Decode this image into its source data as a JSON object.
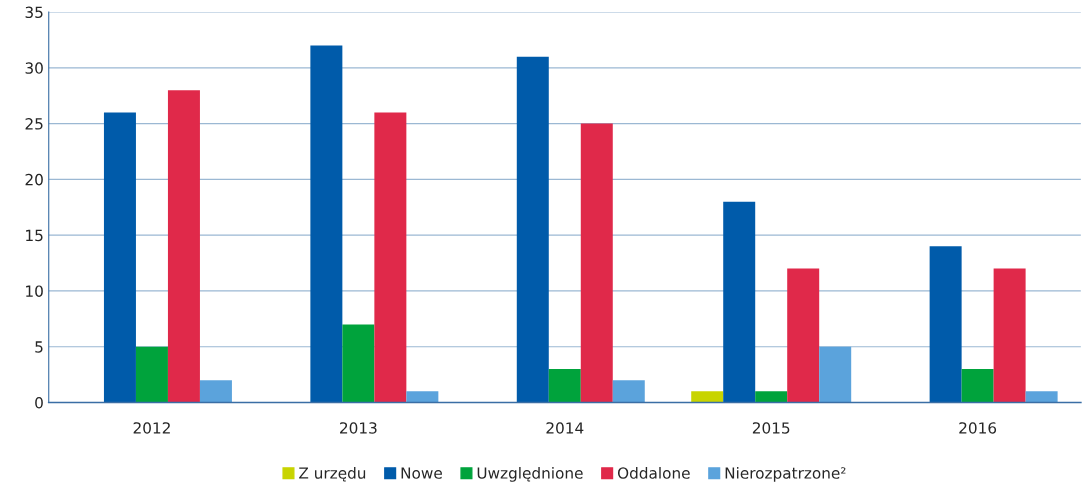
{
  "chart_data": {
    "type": "bar",
    "categories": [
      "2012",
      "2013",
      "2014",
      "2015",
      "2016"
    ],
    "series": [
      {
        "name": "Z urzędu",
        "color": "#c8d400",
        "values": [
          null,
          null,
          null,
          1,
          null
        ]
      },
      {
        "name": "Nowe",
        "color": "#005baa",
        "values": [
          26,
          32,
          31,
          18,
          14
        ]
      },
      {
        "name": "Uwzględnione",
        "color": "#00a33c",
        "values": [
          5,
          7,
          3,
          1,
          3
        ]
      },
      {
        "name": "Oddalone",
        "color": "#e0294a",
        "values": [
          28,
          26,
          25,
          12,
          12
        ]
      },
      {
        "name": "Nierozpatrzone²",
        "color": "#5ba3dc",
        "values": [
          2,
          1,
          2,
          5,
          1
        ]
      }
    ],
    "ylim": [
      0,
      35
    ],
    "yticks": [
      0,
      5,
      10,
      15,
      20,
      25,
      30,
      35
    ],
    "grid": "y",
    "legend": "bottom"
  }
}
